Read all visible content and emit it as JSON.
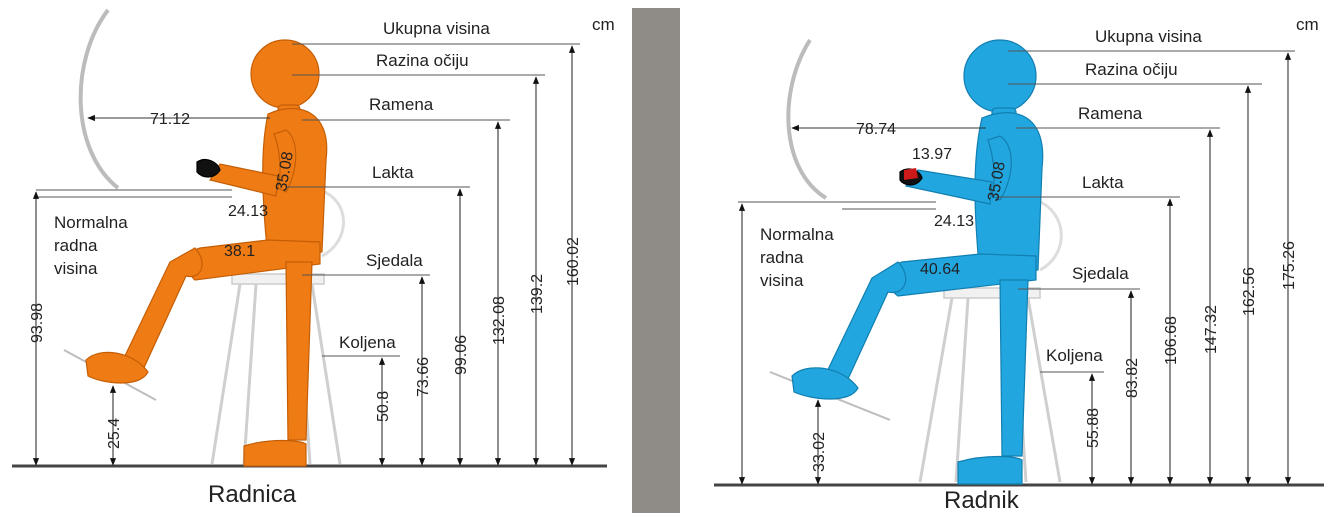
{
  "unit": "cm",
  "colors": {
    "female": "#ef7b14",
    "male": "#22a6df",
    "divider": "#8f8b86",
    "floor": "#444444"
  },
  "left": {
    "caption": "Radnica",
    "labels": {
      "ukupna_visina": "Ukupna visina",
      "razina_ociju": "Razina očiju",
      "ramena": "Ramena",
      "lakta": "Lakta",
      "sjedala": "Sjedala",
      "koljena": "Koljena",
      "normalna_radna_visina": [
        "Normalna",
        "radna",
        "visina"
      ]
    },
    "values": {
      "ukupna_visina": "160.02",
      "razina_ociju": "139.2",
      "ramena": "132.08",
      "lakta": "99.06",
      "sjedala": "73.66",
      "koljena": "50.8",
      "normalna_radna_visina": "93.98",
      "stopalo": "25.4",
      "doseg": "71.12",
      "podlaktica": "24.13",
      "nadlaktica": "35.08",
      "natkoljenica": "38.1"
    }
  },
  "right": {
    "caption": "Radnik",
    "labels": {
      "ukupna_visina": "Ukupna visina",
      "razina_ociju": "Razina očiju",
      "ramena": "Ramena",
      "lakta": "Lakta",
      "sjedala": "Sjedala",
      "koljena": "Koljena",
      "normalna_radna_visina": [
        "Normalna",
        "radna",
        "visina"
      ]
    },
    "values": {
      "ukupna_visina": "175.26",
      "razina_ociju": "162.56",
      "ramena": "147.32",
      "lakta": "106.68",
      "sjedala": "83.82",
      "koljena": "55.88",
      "stopalo": "33.02",
      "doseg": "78.74",
      "saka": "13.97",
      "podlaktica": "24.13",
      "nadlaktica": "35.08",
      "natkoljenica": "40.64"
    }
  }
}
